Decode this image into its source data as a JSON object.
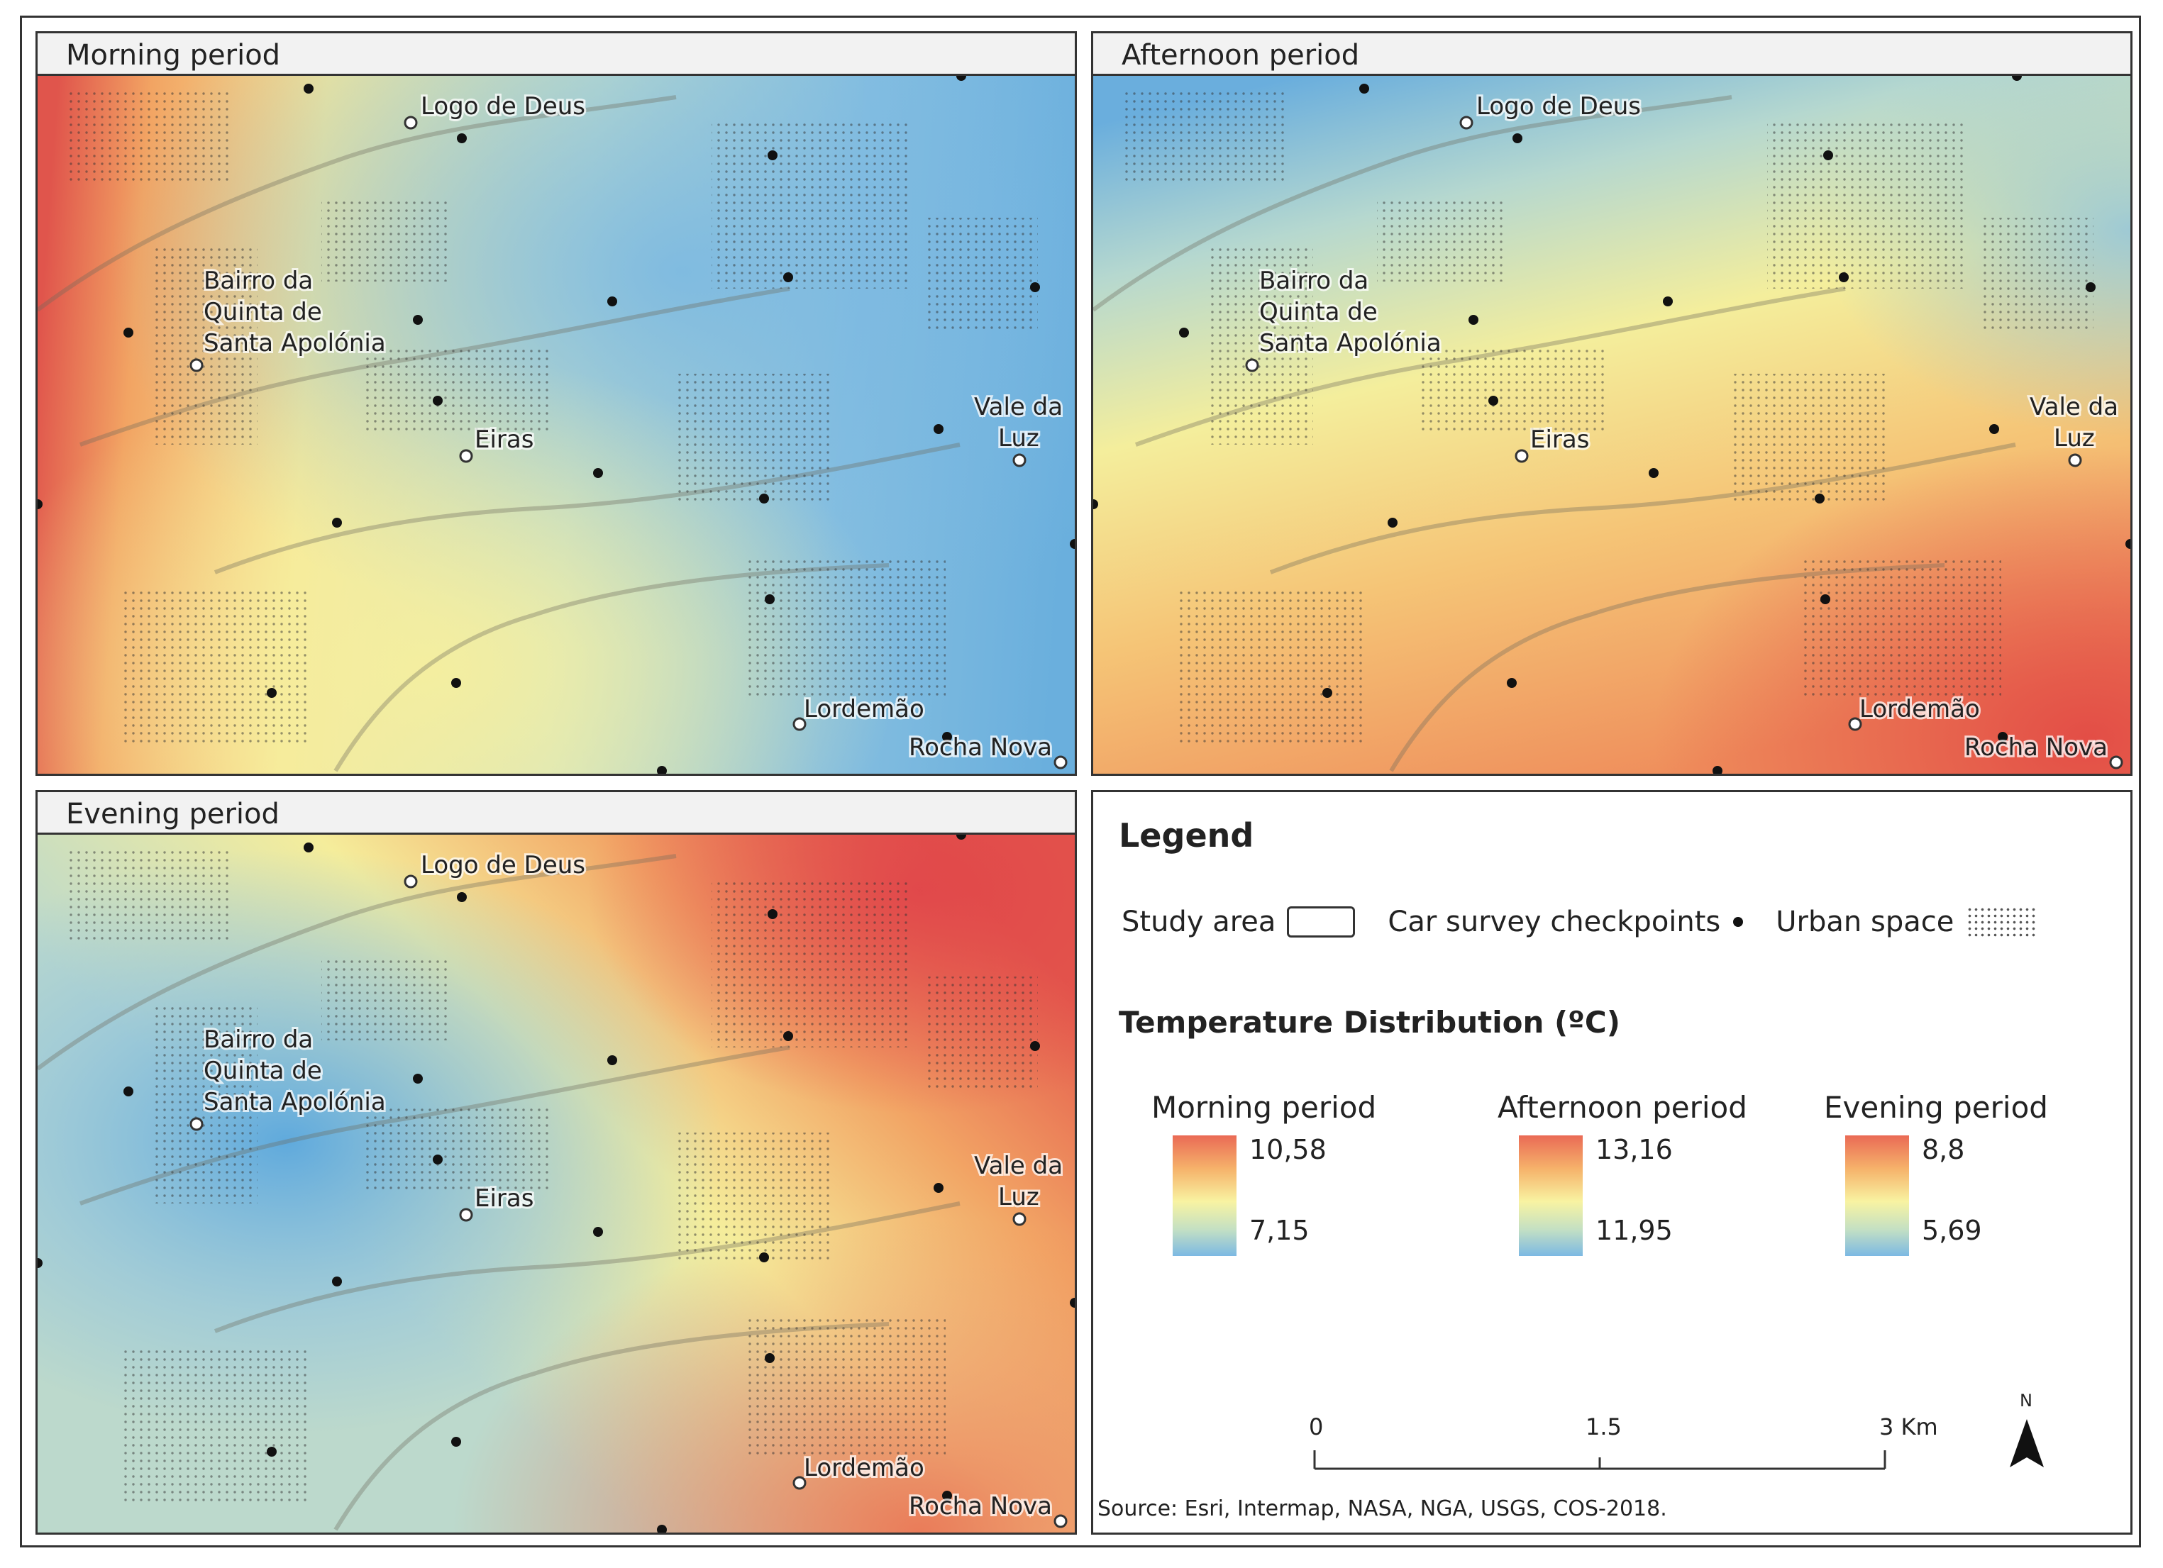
{
  "panels": [
    {
      "title": "Morning period",
      "colors": {
        "warm": "#e2504a",
        "mid": "#f7ef9c",
        "cool": "#5fa9de"
      },
      "places": [
        "Logo de Deus",
        "Bairro da",
        "Quinta de",
        "Santa Apolónia",
        "Eiras",
        "Vale da",
        "Luz",
        "Lordemão",
        "Rocha Nova"
      ]
    },
    {
      "title": "Afternoon period",
      "colors": {
        "warm": "#e2504a",
        "mid": "#f7ef9c",
        "cool": "#5fa9de"
      },
      "places": [
        "Logo de Deus",
        "Bairro da",
        "Quinta de",
        "Santa Apolónia",
        "Eiras",
        "Vale da",
        "Luz",
        "Lordemão",
        "Rocha Nova"
      ]
    },
    {
      "title": "Evening period",
      "colors": {
        "warm": "#e2504a",
        "mid": "#f7ef9c",
        "cool": "#5fa9de"
      },
      "places": [
        "Logo de Deus",
        "Bairro da",
        "Quinta de",
        "Santa Apolónia",
        "Eiras",
        "Vale da",
        "Luz",
        "Lordemão",
        "Rocha Nova"
      ]
    }
  ],
  "legend": {
    "title": "Legend",
    "study_area": "Study area",
    "checkpoints": "Car survey checkpoints",
    "urban": "Urban space",
    "temp_title": "Temperature Distribution (ºC)",
    "ramps": [
      {
        "name": "Morning period",
        "max": "10,58",
        "min": "7,15"
      },
      {
        "name": "Afternoon period",
        "max": "13,16",
        "min": "11,95"
      },
      {
        "name": "Evening period",
        "max": "8,8",
        "min": "5,69"
      }
    ],
    "scale": {
      "zero": "0",
      "mid": "1.5",
      "end": "3 Km"
    },
    "north": "N",
    "source": "Source: Esri, Intermap, NASA, NGA, USGS, COS-2018."
  }
}
